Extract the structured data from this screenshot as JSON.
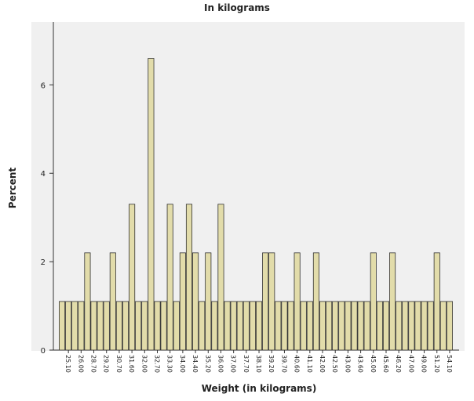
{
  "chart_data": {
    "type": "bar",
    "title": "In kilograms",
    "x_label": "Weight (in kilograms)",
    "y_label": "Percent",
    "categories": [
      null,
      "25.10",
      null,
      "26.00",
      null,
      "28.70",
      null,
      "29.20",
      null,
      "30.70",
      null,
      "31.60",
      null,
      "32.00",
      null,
      "32.70",
      null,
      "33.30",
      null,
      "34.00",
      null,
      "34.40",
      null,
      "35.20",
      null,
      "36.00",
      null,
      "37.00",
      null,
      "37.70",
      null,
      "38.10",
      null,
      "39.20",
      null,
      "39.70",
      null,
      "40.60",
      null,
      "41.10",
      null,
      "42.00",
      null,
      "42.50",
      null,
      "43.00",
      null,
      "43.60",
      null,
      "45.00",
      null,
      "45.60",
      null,
      "46.20",
      null,
      "47.00",
      null,
      "49.00",
      null,
      "51.20",
      null,
      "54.10"
    ],
    "values": [
      1.1,
      1.1,
      1.1,
      1.1,
      2.2,
      1.1,
      1.1,
      1.1,
      2.2,
      1.1,
      1.1,
      3.3,
      1.1,
      1.1,
      6.6,
      1.1,
      1.1,
      3.3,
      1.1,
      2.2,
      3.3,
      2.2,
      1.1,
      2.2,
      1.1,
      3.3,
      1.1,
      1.1,
      1.1,
      1.1,
      1.1,
      1.1,
      2.2,
      2.2,
      1.1,
      1.1,
      1.1,
      2.2,
      1.1,
      1.1,
      2.2,
      1.1,
      1.1,
      1.1,
      1.1,
      1.1,
      1.1,
      1.1,
      1.1,
      2.2,
      1.1,
      1.1,
      2.2,
      1.1,
      1.1,
      1.1,
      1.1,
      1.1,
      1.1,
      2.2,
      1.1,
      1.1
    ],
    "color": "#e2dcaa",
    "ylim": [
      0,
      7.3
    ],
    "yticks": [
      0,
      2,
      4,
      6
    ],
    "grid": false
  }
}
